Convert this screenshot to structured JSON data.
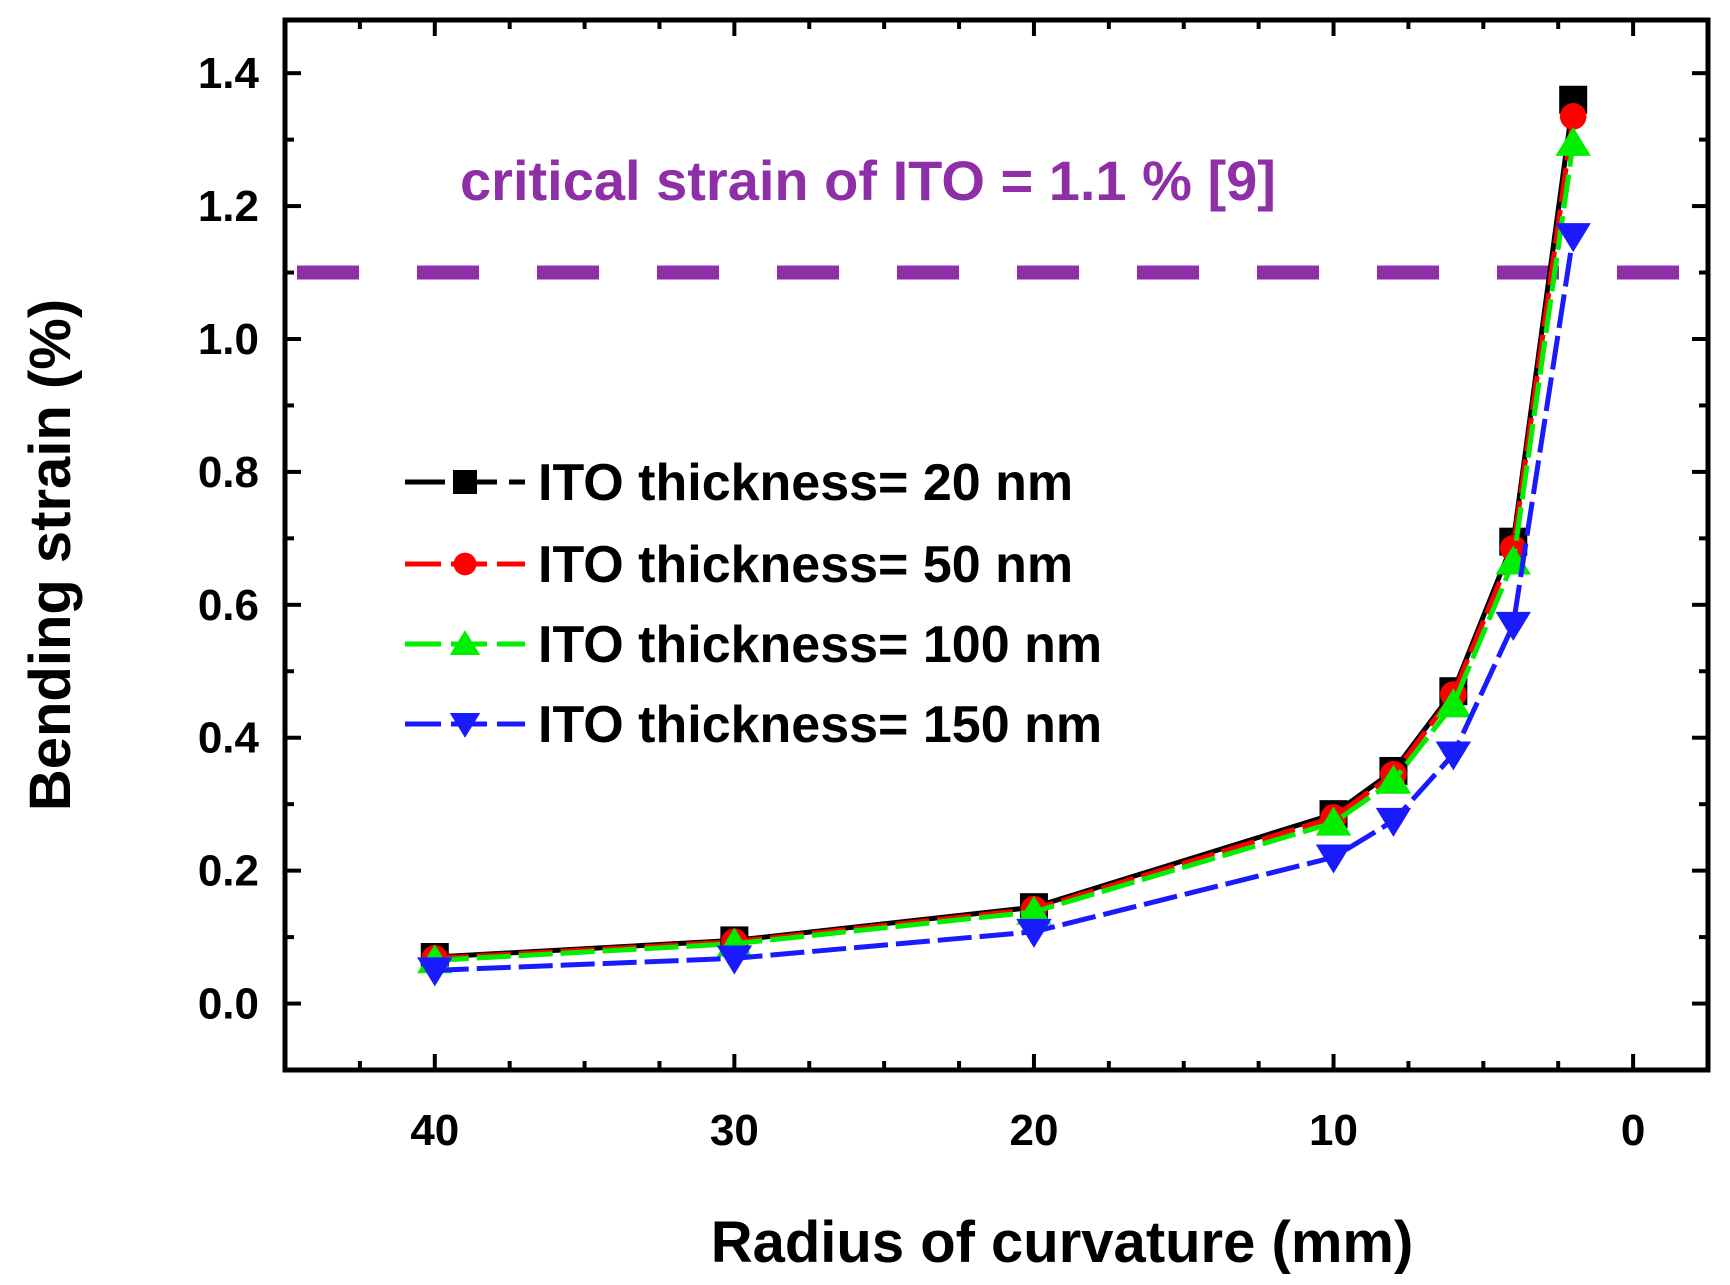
{
  "chart_data": {
    "type": "line",
    "title": "",
    "xlabel": "Radius of curvature (mm)",
    "ylabel": "Bending strain (%)",
    "xlim": [
      45,
      -2.5
    ],
    "ylim": [
      -0.1,
      1.48
    ],
    "x_reversed": true,
    "x_ticks": [
      40,
      30,
      20,
      10,
      0
    ],
    "y_ticks": [
      0.0,
      0.2,
      0.4,
      0.6,
      0.8,
      1.0,
      1.2,
      1.4
    ],
    "x_tick_labels": [
      "40",
      "30",
      "20",
      "10",
      "0"
    ],
    "y_tick_labels": [
      "0.0",
      "0.2",
      "0.4",
      "0.6",
      "0.8",
      "1.0",
      "1.2",
      "1.4"
    ],
    "grid": false,
    "legend_position": "center-left",
    "x": [
      40,
      30,
      20,
      10,
      8,
      6,
      4,
      2
    ],
    "series": [
      {
        "name": "ITO thickness= 20 nm",
        "color": "#000000",
        "marker": "square",
        "values": [
          0.07,
          0.095,
          0.145,
          0.285,
          0.35,
          0.47,
          0.695,
          1.36
        ]
      },
      {
        "name": "ITO thickness= 50 nm",
        "color": "#ff0000",
        "marker": "circle",
        "values": [
          0.068,
          0.093,
          0.142,
          0.28,
          0.345,
          0.465,
          0.685,
          1.335
        ]
      },
      {
        "name": "ITO thickness= 100 nm",
        "color": "#00ee00",
        "marker": "triangle-up",
        "values": [
          0.065,
          0.09,
          0.138,
          0.272,
          0.335,
          0.45,
          0.665,
          1.295
        ]
      },
      {
        "name": "ITO thickness= 150 nm",
        "color": "#1a1aff",
        "marker": "triangle-down",
        "values": [
          0.05,
          0.068,
          0.108,
          0.22,
          0.275,
          0.375,
          0.57,
          1.155
        ]
      }
    ],
    "annotations": [
      {
        "type": "hline",
        "y": 1.1,
        "color": "#8e2fa8",
        "style": "dashed",
        "label": "critical strain of ITO = 1.1 % [9]"
      }
    ]
  }
}
